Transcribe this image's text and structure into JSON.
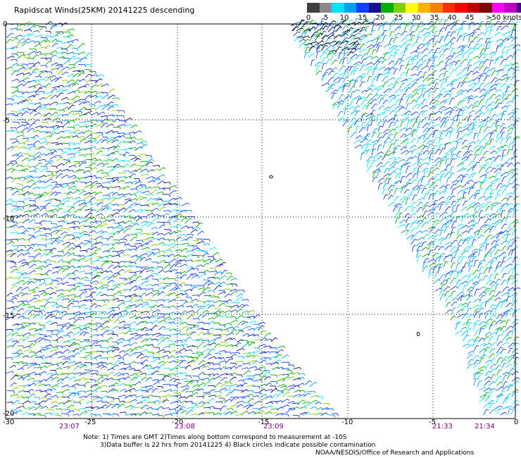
{
  "title": "Rapidscat Winds(25KM) 20141225 descending",
  "legend": {
    "ticks": [
      "0",
      "5",
      "10",
      "15",
      "20",
      "25",
      "30",
      "35",
      "40",
      "45",
      ">50 knots"
    ],
    "colors": [
      "#404040",
      "#8a8a8a",
      "#00e0ff",
      "#00a0f0",
      "#1040ff",
      "#101090",
      "#00b000",
      "#80d000",
      "#ffff00",
      "#ffb000",
      "#ff8000",
      "#ff3000",
      "#ff0000",
      "#c00000",
      "#800000",
      "#ff00ff",
      "#c000c0",
      "#400080"
    ]
  },
  "map": {
    "lon_labels": [
      "-30",
      "-25",
      "-20",
      "-15",
      "-10",
      "-5",
      "0"
    ],
    "lat_labels": [
      "0",
      "-5",
      "-10",
      "-15",
      "-20"
    ]
  },
  "times": [
    "23:07",
    "23:08",
    "23:09",
    "21:33",
    "21:34"
  ],
  "notes": {
    "line1": "Note: 1) Times are GMT 2)Times along bottom correspond to measurement at -10S",
    "line2": "3)Data buffer is 22 hrs from 20141225 4) Black circles indicate possible contamination"
  },
  "credit": "NOAA/NESDIS/Office of Research and Applications"
}
